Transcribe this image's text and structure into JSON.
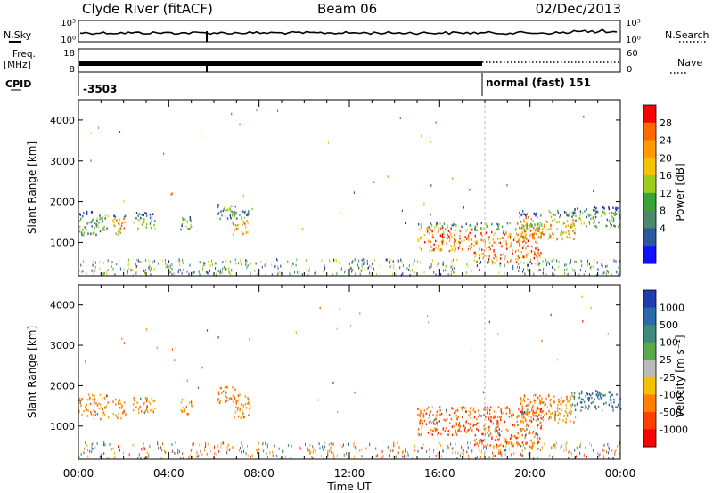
{
  "header": {
    "station": "Clyde River (fitACF)",
    "beam": "Beam 06",
    "date": "02/Dec/2013"
  },
  "noise_panel": {
    "left_label": "N.Sky",
    "right_label": "N.Search",
    "left_ticks": [
      "10^5",
      "10^0"
    ],
    "right_ticks": [
      "10^5",
      "10^0"
    ],
    "left_legend_style": "solid",
    "right_legend_style": "dotted"
  },
  "freq_panel": {
    "left_label_line1": "Freq.",
    "left_label_line2": "[MHz]",
    "right_label": "Nave",
    "left_ticks": [
      "18",
      "8"
    ],
    "right_ticks": [
      "60",
      "0"
    ],
    "right_legend_style": "dotted"
  },
  "cpid_panel": {
    "label": "CPID",
    "entries": [
      {
        "text": "-3503",
        "start_hour": 0
      },
      {
        "text": "normal (fast) 151",
        "start_hour": 18
      }
    ]
  },
  "chart_data": [
    {
      "type": "heatmap",
      "name": "power",
      "ylabel": "Slant Range [km]",
      "ylim": [
        180,
        4500
      ],
      "yticks": [
        1000,
        2000,
        3000,
        4000
      ],
      "xlim_hours": [
        0,
        24
      ],
      "colorbar_label": "Power [dB]",
      "colorbar_ticks": [
        "28",
        "24",
        "20",
        "16",
        "12",
        "8",
        "4"
      ],
      "colorbar_colors": [
        "#ff0000",
        "#ff6a00",
        "#ff9a00",
        "#f5c400",
        "#9ccc1a",
        "#3aa33a",
        "#4a8a6a",
        "#2a5a9c",
        "#1010ff"
      ],
      "colors": [
        "#ff0000",
        "#ff5a00",
        "#ffa000",
        "#e0d020",
        "#7ac030",
        "#3a9a4a",
        "#2a5aaa",
        "#1e2aa0"
      ],
      "echo_regions": [
        {
          "x": [
            0.0,
            1.3
          ],
          "y": [
            1200,
            1800
          ],
          "power": 16
        },
        {
          "x": [
            1.5,
            2.1
          ],
          "y": [
            1200,
            1700
          ],
          "power": 18
        },
        {
          "x": [
            2.4,
            3.4
          ],
          "y": [
            1350,
            1750
          ],
          "power": 14
        },
        {
          "x": [
            4.5,
            5.0
          ],
          "y": [
            1300,
            1700
          ],
          "power": 14
        },
        {
          "x": [
            6.1,
            7.0
          ],
          "y": [
            1600,
            2000
          ],
          "power": 14
        },
        {
          "x": [
            6.8,
            7.6
          ],
          "y": [
            1200,
            1800
          ],
          "power": 22
        },
        {
          "x": [
            15.0,
            17.5
          ],
          "y": [
            800,
            1500
          ],
          "power": 24
        },
        {
          "x": [
            17.5,
            20.5
          ],
          "y": [
            500,
            1500
          ],
          "power": 28
        },
        {
          "x": [
            19.5,
            22.0
          ],
          "y": [
            1100,
            1800
          ],
          "power": 20
        },
        {
          "x": [
            21.8,
            24.0
          ],
          "y": [
            1400,
            1900
          ],
          "power": 10
        }
      ]
    },
    {
      "type": "heatmap",
      "name": "velocity",
      "ylabel": "Slant Range [km]",
      "ylim": [
        180,
        4500
      ],
      "yticks": [
        1000,
        2000,
        3000,
        4000
      ],
      "xlim_hours": [
        0,
        24
      ],
      "colorbar_label": "Velocity [m s^-1]",
      "colorbar_ticks": [
        "1000",
        "500",
        "100",
        "25",
        "-25",
        "-100",
        "-500",
        "-1000"
      ],
      "colorbar_colors": [
        "#1f3fb0",
        "#2a6aaa",
        "#3f8a7a",
        "#5aaa4a",
        "#bbbbbb",
        "#f5c000",
        "#ff8000",
        "#ff4000",
        "#ff0000"
      ],
      "colors": [
        "#ff2000",
        "#ff6000",
        "#ff9000",
        "#f0b000",
        "#bbbbbb",
        "#3a8a6a",
        "#2a5aaa"
      ],
      "echo_regions": [
        {
          "x": [
            0.0,
            1.3
          ],
          "y": [
            1200,
            1800
          ],
          "velocity": -300
        },
        {
          "x": [
            1.5,
            2.1
          ],
          "y": [
            1200,
            1700
          ],
          "velocity": -200
        },
        {
          "x": [
            2.4,
            3.4
          ],
          "y": [
            1350,
            1750
          ],
          "velocity": -300
        },
        {
          "x": [
            4.5,
            5.0
          ],
          "y": [
            1300,
            1700
          ],
          "velocity": -150
        },
        {
          "x": [
            6.1,
            7.0
          ],
          "y": [
            1600,
            2000
          ],
          "velocity": -200
        },
        {
          "x": [
            6.8,
            7.6
          ],
          "y": [
            1200,
            1800
          ],
          "velocity": -400
        },
        {
          "x": [
            15.0,
            17.5
          ],
          "y": [
            800,
            1500
          ],
          "velocity": -500
        },
        {
          "x": [
            17.5,
            20.5
          ],
          "y": [
            500,
            1500
          ],
          "velocity": -700
        },
        {
          "x": [
            19.5,
            22.0
          ],
          "y": [
            1100,
            1800
          ],
          "velocity": -400
        },
        {
          "x": [
            21.8,
            24.0
          ],
          "y": [
            1400,
            1900
          ],
          "velocity": 200
        }
      ]
    }
  ],
  "x_axis": {
    "ticks": [
      "00:00",
      "04:00",
      "08:00",
      "12:00",
      "16:00",
      "20:00",
      "00:00"
    ],
    "tick_hours": [
      0,
      4,
      8,
      12,
      16,
      20,
      24
    ],
    "label": "Time UT"
  }
}
